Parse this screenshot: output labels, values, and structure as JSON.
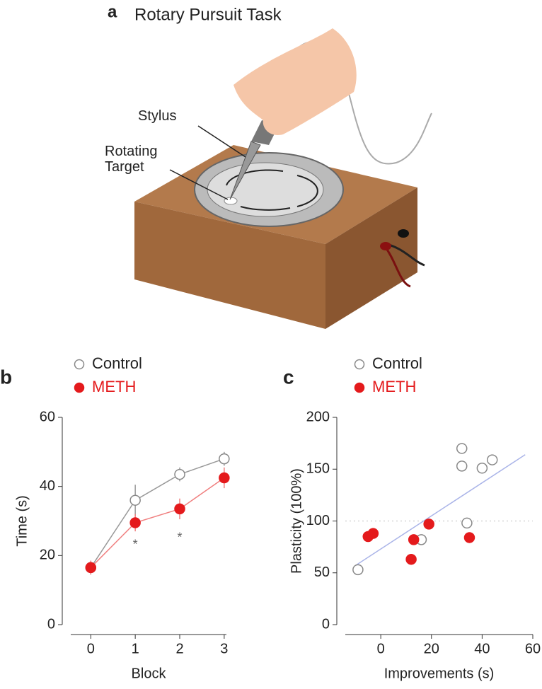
{
  "illustration": {
    "panel_label": "a",
    "title": "Rotary Pursuit Task",
    "labels": [
      "Stylus",
      "Rotating Target"
    ]
  },
  "chart_data": [
    {
      "type": "line",
      "panel_label": "b",
      "x_label": "Block",
      "y_label": "Time (s)",
      "x": [
        0,
        1,
        2,
        3
      ],
      "series": [
        {
          "name": "Control",
          "color": "#888888",
          "marker": "open",
          "values": [
            16.5,
            36,
            43.5,
            48
          ],
          "errors": [
            2,
            4.5,
            2,
            2
          ]
        },
        {
          "name": "METH",
          "color": "#e41a1c",
          "marker": "filled",
          "values": [
            16.5,
            29.5,
            33.5,
            42.5
          ],
          "errors": [
            2,
            2.5,
            3,
            3
          ]
        }
      ],
      "annotations": [
        {
          "text": "*",
          "x": 1,
          "y": 23
        },
        {
          "text": "*",
          "x": 2,
          "y": 25
        }
      ],
      "xlim": [
        -0.45,
        3.05
      ],
      "xticks": [
        0,
        1,
        2,
        3
      ],
      "ylim": [
        0,
        60
      ],
      "yticks": [
        0,
        20,
        40,
        60
      ]
    },
    {
      "type": "scatter",
      "panel_label": "c",
      "x_label": "Improvements (s)",
      "y_label": "Plasticity (100%)",
      "series": [
        {
          "name": "Control",
          "color": "#888888",
          "marker": "open",
          "x": [
            -9,
            16,
            32,
            32,
            40,
            44,
            34
          ],
          "y": [
            53,
            82,
            170,
            153,
            151,
            159,
            98
          ]
        },
        {
          "name": "METH",
          "color": "#e41a1c",
          "marker": "filled",
          "x": [
            -5,
            -3,
            13,
            12,
            19,
            35
          ],
          "y": [
            85,
            88,
            82,
            63,
            97,
            84
          ]
        }
      ],
      "fit_line": {
        "x": [
          -10,
          57
        ],
        "y": [
          57,
          164
        ],
        "color": "#aab4e8"
      },
      "reference_line": 100,
      "xlim": [
        -14,
        60
      ],
      "xticks": [
        0,
        20,
        40,
        60
      ],
      "ylim": [
        0,
        200
      ],
      "yticks": [
        0,
        50,
        100,
        150,
        200
      ]
    }
  ]
}
